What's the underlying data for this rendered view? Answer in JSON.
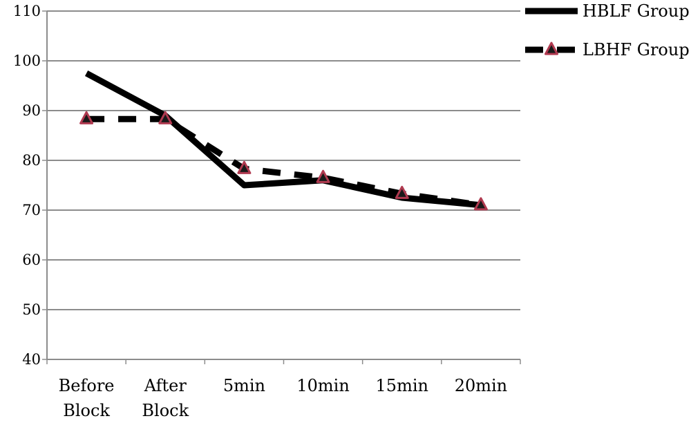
{
  "chart_data": {
    "type": "line",
    "categories": [
      [
        "Before",
        "Block"
      ],
      [
        "After",
        "Block"
      ],
      [
        "5min"
      ],
      [
        "10min"
      ],
      [
        "15min"
      ],
      [
        "20min"
      ]
    ],
    "ylim": [
      40,
      110
    ],
    "yticks": [
      40,
      50,
      60,
      70,
      80,
      90,
      100,
      110
    ],
    "grid": true,
    "legend_position": "top-right",
    "series": [
      {
        "name": "HBLF Group",
        "values": [
          97.5,
          89,
          75,
          76,
          72.5,
          71
        ],
        "line": "solid",
        "marker": "none",
        "color": "#000000"
      },
      {
        "name": "LBHF Group",
        "values": [
          88.3,
          88.3,
          78.3,
          76.5,
          73.3,
          71
        ],
        "line": "dashed",
        "marker": "triangle",
        "color": "#000000",
        "marker_color": "#b03a50"
      }
    ]
  }
}
